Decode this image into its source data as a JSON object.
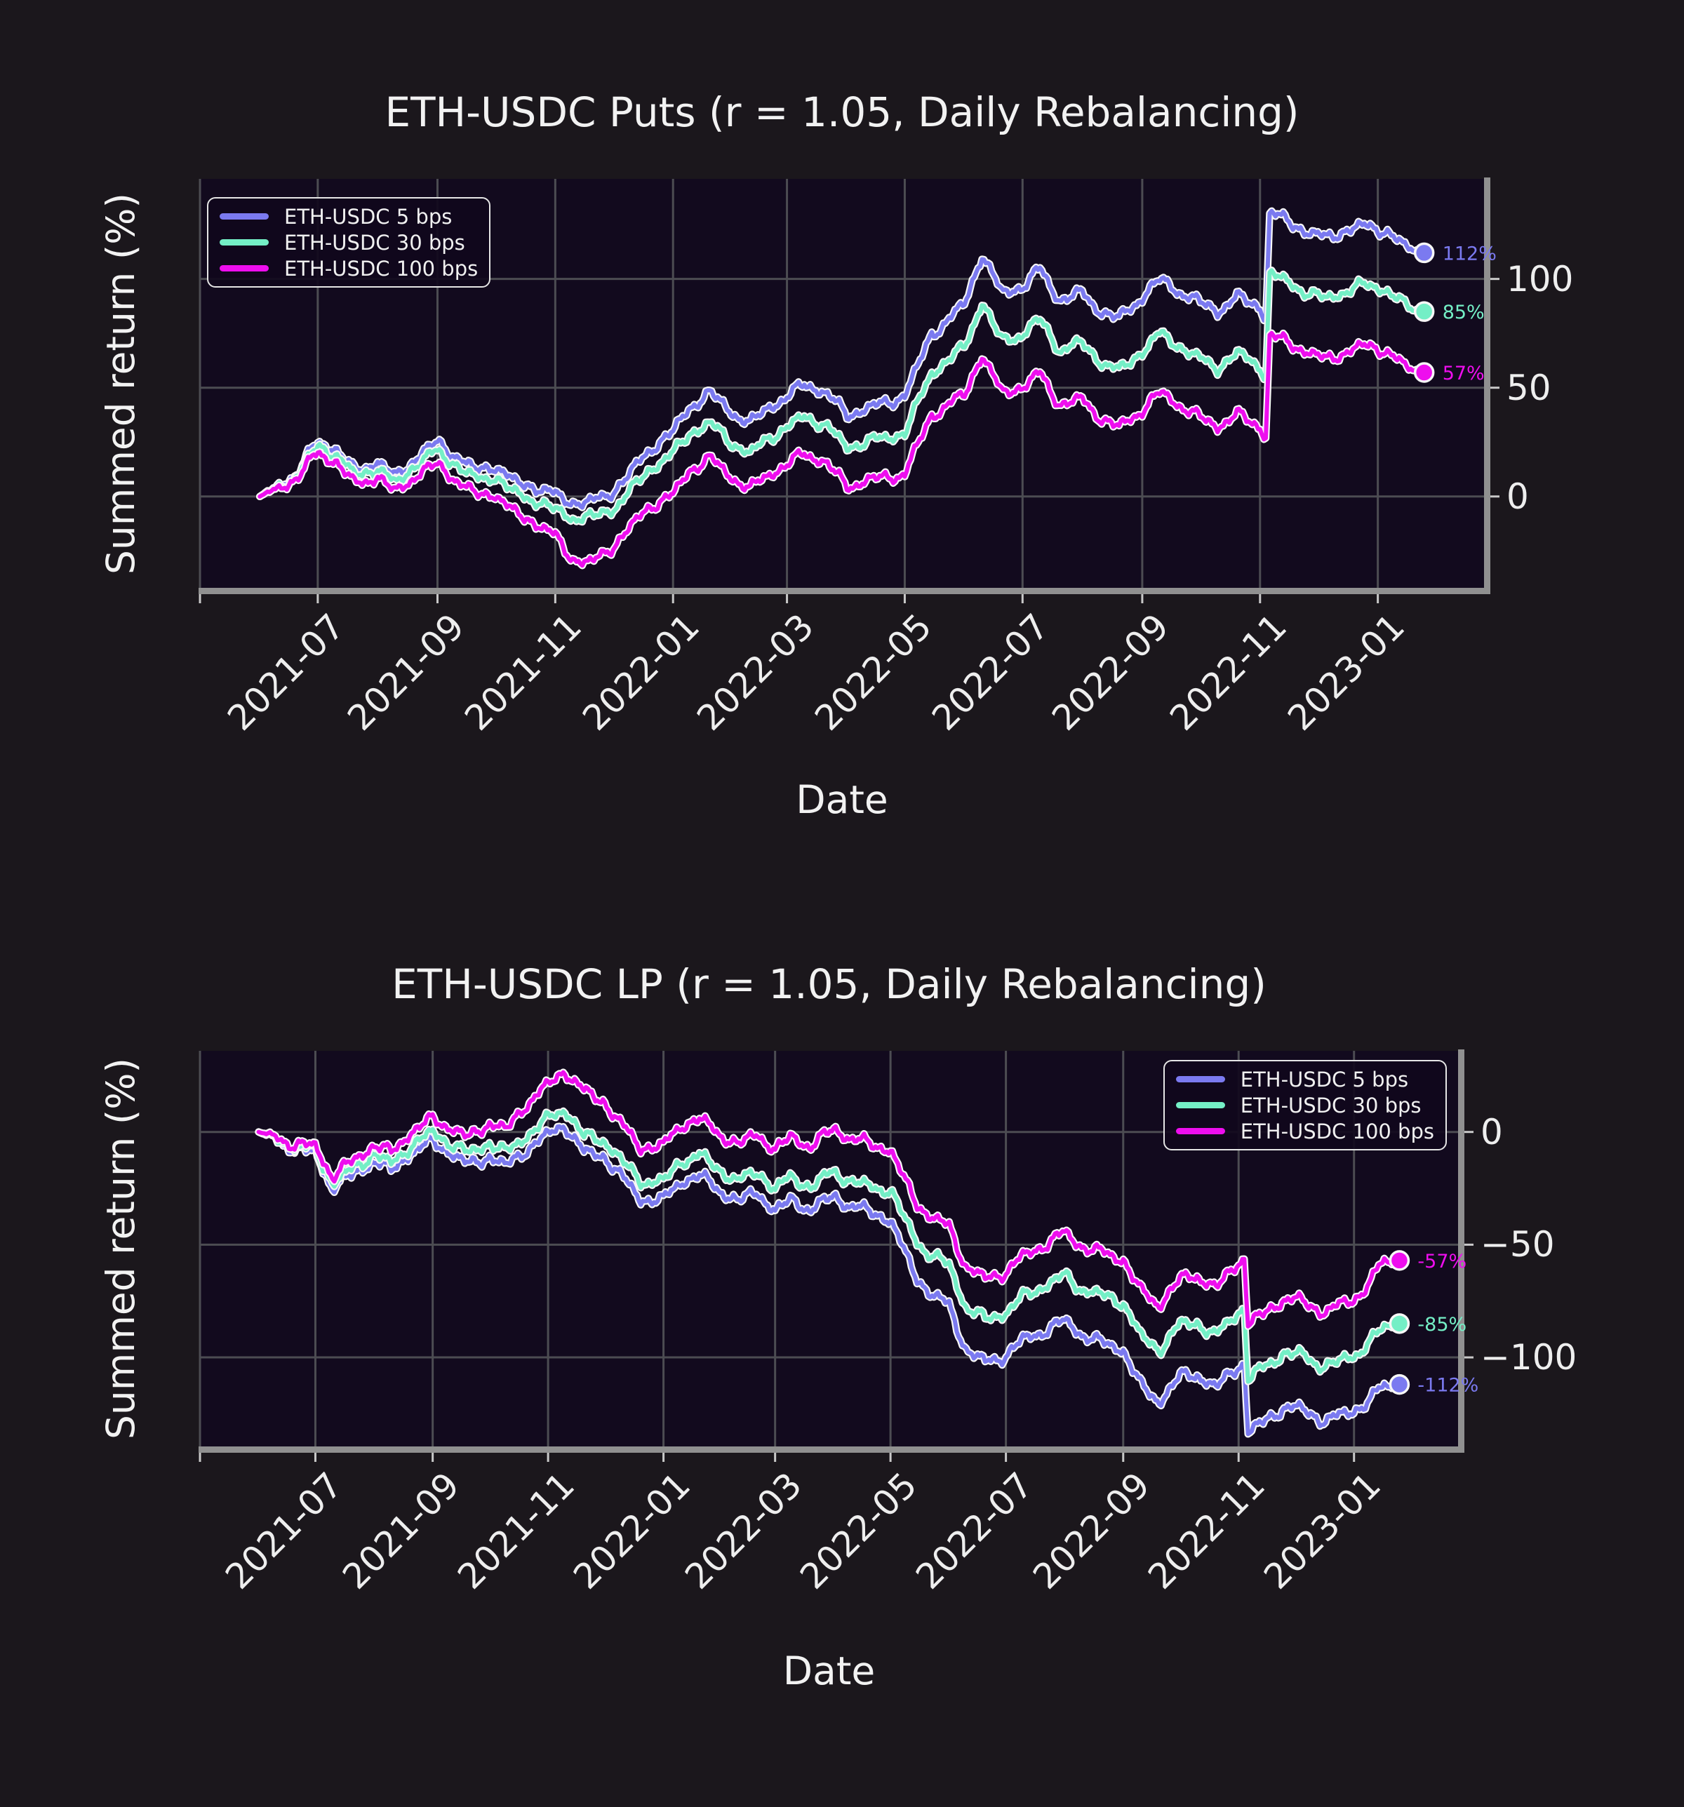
{
  "style": {
    "figure_bg": "#1b171c",
    "axes_bg": "#120a1e",
    "grid_color": "#4c4c52",
    "spine_color": "#909090",
    "tick_color": "#c9c9c9",
    "text_color": "#f2f2f2",
    "line_outline": "#f7f7f7"
  },
  "chart_data": [
    {
      "id": "puts",
      "type": "line",
      "title": "ETH-USDC Puts (r = 1.05, Daily Rebalancing)",
      "xlabel": "Date",
      "ylabel": "Summed return (%)",
      "grid": true,
      "legend_position": "upper left",
      "xlim": [
        "2021-05-01",
        "2023-02-25"
      ],
      "ylim": [
        -42,
        146
      ],
      "yticks": [
        {
          "value": 100,
          "label": "100"
        },
        {
          "value": 50,
          "label": "50"
        },
        {
          "value": 0,
          "label": "0"
        }
      ],
      "xticks": [
        {
          "date": "2021-05-01",
          "label": ""
        },
        {
          "date": "2021-07-01",
          "label": "2021-07"
        },
        {
          "date": "2021-09-01",
          "label": "2021-09"
        },
        {
          "date": "2021-11-01",
          "label": "2021-11"
        },
        {
          "date": "2022-01-01",
          "label": "2022-01"
        },
        {
          "date": "2022-03-01",
          "label": "2022-03"
        },
        {
          "date": "2022-05-01",
          "label": "2022-05"
        },
        {
          "date": "2022-07-01",
          "label": "2022-07"
        },
        {
          "date": "2022-09-01",
          "label": "2022-09"
        },
        {
          "date": "2022-11-01",
          "label": "2022-11"
        },
        {
          "date": "2023-01-01",
          "label": "2023-01"
        }
      ],
      "x": [
        "2021-06-01",
        "2021-06-10",
        "2021-06-20",
        "2021-07-01",
        "2021-07-10",
        "2021-07-20",
        "2021-08-01",
        "2021-08-10",
        "2021-08-20",
        "2021-09-01",
        "2021-09-10",
        "2021-09-20",
        "2021-10-01",
        "2021-10-10",
        "2021-10-20",
        "2021-11-01",
        "2021-11-10",
        "2021-11-20",
        "2021-12-01",
        "2021-12-10",
        "2021-12-20",
        "2022-01-01",
        "2022-01-10",
        "2022-01-20",
        "2022-02-01",
        "2022-02-10",
        "2022-02-20",
        "2022-03-01",
        "2022-03-10",
        "2022-03-20",
        "2022-04-01",
        "2022-04-10",
        "2022-04-20",
        "2022-05-01",
        "2022-05-08",
        "2022-05-15",
        "2022-05-22",
        "2022-06-01",
        "2022-06-10",
        "2022-06-20",
        "2022-07-01",
        "2022-07-10",
        "2022-07-20",
        "2022-08-01",
        "2022-08-10",
        "2022-08-20",
        "2022-09-01",
        "2022-09-10",
        "2022-09-20",
        "2022-10-01",
        "2022-10-10",
        "2022-10-20",
        "2022-11-01",
        "2022-11-04",
        "2022-11-06",
        "2022-11-15",
        "2022-11-25",
        "2022-12-05",
        "2022-12-15",
        "2022-12-25",
        "2023-01-05",
        "2023-01-15",
        "2023-01-25"
      ],
      "series": [
        {
          "name": "ETH-USDC 5 bps",
          "color": "#7b7af0",
          "end_label": "112%",
          "values": [
            0,
            4,
            10,
            25,
            23,
            12,
            16,
            8,
            17,
            25,
            20,
            12,
            14,
            6,
            5,
            1,
            -2,
            -3,
            2,
            10,
            22,
            30,
            42,
            47,
            38,
            33,
            42,
            46,
            52,
            48,
            37,
            40,
            43,
            47,
            60,
            75,
            79,
            88,
            112,
            94,
            97,
            104,
            90,
            93,
            86,
            82,
            92,
            99,
            94,
            89,
            86,
            92,
            87,
            82,
            130,
            126,
            122,
            119,
            123,
            124,
            122,
            114,
            112
          ]
        },
        {
          "name": "ETH-USDC 30 bps",
          "color": "#74efc6",
          "end_label": "85%",
          "values": [
            0,
            3.5,
            9,
            23,
            20.5,
            10,
            13,
            5,
            14,
            21,
            16,
            8,
            9,
            1,
            -1,
            -6,
            -9,
            -10,
            -6,
            2,
            13,
            20,
            30,
            33,
            24,
            19,
            28,
            32,
            37,
            33,
            22,
            25,
            27,
            30,
            43,
            57,
            61,
            68,
            90,
            72,
            75,
            81,
            67,
            70,
            63,
            58,
            67,
            74,
            69,
            63,
            60,
            66,
            60,
            55,
            102,
            98,
            94,
            91,
            95,
            97,
            95,
            87,
            85
          ]
        },
        {
          "name": "ETH-USDC 100 bps",
          "color": "#ee0eee",
          "end_label": "57%",
          "values": [
            0,
            3,
            8,
            20,
            17,
            6,
            9,
            1,
            9,
            15,
            9,
            1,
            1,
            -8,
            -11,
            -18,
            -28,
            -31,
            -23,
            -15,
            -4,
            1,
            13,
            17,
            8,
            3,
            11,
            15,
            20,
            16,
            4,
            7,
            9,
            11,
            24,
            37,
            41,
            46,
            66,
            48,
            51,
            56,
            42,
            44,
            37,
            32,
            40,
            47,
            42,
            36,
            33,
            38,
            32,
            27,
            74,
            70,
            67,
            63,
            67,
            69,
            67,
            59,
            57
          ]
        }
      ]
    },
    {
      "id": "lp",
      "type": "line",
      "title": "ETH-USDC LP (r = 1.05, Daily Rebalancing)",
      "xlabel": "Date",
      "ylabel": "Summed return (%)",
      "grid": true,
      "legend_position": "upper right",
      "xlim": [
        "2021-05-01",
        "2023-02-25"
      ],
      "ylim": [
        -139.5,
        36
      ],
      "yticks": [
        {
          "value": 0,
          "label": "0"
        },
        {
          "value": -50,
          "label": "−50"
        },
        {
          "value": -100,
          "label": "−100"
        }
      ],
      "xticks": [
        {
          "date": "2021-05-01",
          "label": ""
        },
        {
          "date": "2021-07-01",
          "label": "2021-07"
        },
        {
          "date": "2021-09-01",
          "label": "2021-09"
        },
        {
          "date": "2021-11-01",
          "label": "2021-11"
        },
        {
          "date": "2022-01-01",
          "label": "2022-01"
        },
        {
          "date": "2022-03-01",
          "label": "2022-03"
        },
        {
          "date": "2022-05-01",
          "label": "2022-05"
        },
        {
          "date": "2022-07-01",
          "label": "2022-07"
        },
        {
          "date": "2022-09-01",
          "label": "2022-09"
        },
        {
          "date": "2022-11-01",
          "label": "2022-11"
        },
        {
          "date": "2023-01-01",
          "label": "2023-01"
        }
      ],
      "x": [
        "2021-06-01",
        "2021-06-10",
        "2021-06-20",
        "2021-07-01",
        "2021-07-10",
        "2021-07-20",
        "2021-08-01",
        "2021-08-10",
        "2021-08-20",
        "2021-09-01",
        "2021-09-10",
        "2021-09-20",
        "2021-10-01",
        "2021-10-10",
        "2021-10-20",
        "2021-11-01",
        "2021-11-10",
        "2021-11-20",
        "2021-12-01",
        "2021-12-10",
        "2021-12-20",
        "2022-01-01",
        "2022-01-10",
        "2022-01-20",
        "2022-02-01",
        "2022-02-10",
        "2022-02-20",
        "2022-03-01",
        "2022-03-10",
        "2022-03-20",
        "2022-04-01",
        "2022-04-10",
        "2022-04-20",
        "2022-05-01",
        "2022-05-08",
        "2022-05-15",
        "2022-05-22",
        "2022-06-01",
        "2022-06-10",
        "2022-06-20",
        "2022-07-01",
        "2022-07-10",
        "2022-07-20",
        "2022-08-01",
        "2022-08-10",
        "2022-08-20",
        "2022-09-01",
        "2022-09-10",
        "2022-09-20",
        "2022-10-01",
        "2022-10-10",
        "2022-10-20",
        "2022-11-01",
        "2022-11-04",
        "2022-11-06",
        "2022-11-15",
        "2022-11-25",
        "2022-12-05",
        "2022-12-15",
        "2022-12-25",
        "2023-01-05",
        "2023-01-15",
        "2023-01-25"
      ],
      "series": [
        {
          "name": "ETH-USDC 5 bps",
          "color": "#7b7af0",
          "end_label": "-112%",
          "values": [
            0,
            -3,
            -7,
            -10,
            -25,
            -20,
            -12,
            -17,
            -9,
            -5,
            -9,
            -15,
            -10,
            -15,
            -8,
            -2,
            3,
            -9,
            -10,
            -20,
            -30,
            -31,
            -22,
            -19,
            -26,
            -31,
            -27,
            -36,
            -30,
            -34,
            -28,
            -33,
            -36,
            -39,
            -53,
            -64,
            -71,
            -77,
            -97,
            -103,
            -99,
            -92,
            -88,
            -84,
            -90,
            -94,
            -96,
            -112,
            -119,
            -109,
            -108,
            -114,
            -103,
            -102,
            -133,
            -128,
            -122,
            -124,
            -128,
            -126,
            -121,
            -114,
            -112
          ]
        },
        {
          "name": "ETH-USDC 30 bps",
          "color": "#74efc6",
          "end_label": "-85%",
          "values": [
            0,
            -2.5,
            -6,
            -8.5,
            -23,
            -17.5,
            -9,
            -14,
            -6,
            -1,
            -5,
            -10,
            -4,
            -9,
            -2,
            5,
            10,
            -2,
            -3,
            -13,
            -22,
            -23,
            -13,
            -10,
            -17,
            -22,
            -18,
            -26,
            -20,
            -24,
            -17,
            -22,
            -25,
            -26,
            -38,
            -48,
            -54,
            -59,
            -78,
            -84,
            -80,
            -73,
            -68,
            -64,
            -70,
            -73,
            -75,
            -90,
            -96,
            -86,
            -85,
            -91,
            -79,
            -78,
            -109,
            -104,
            -98,
            -100,
            -104,
            -102,
            -96,
            -88,
            -85
          ]
        },
        {
          "name": "ETH-USDC 100 bps",
          "color": "#ee0eee",
          "end_label": "-57%",
          "values": [
            0,
            -2,
            -5,
            -7,
            -20,
            -14,
            -5,
            -9,
            0,
            5,
            2,
            -3,
            5,
            1,
            12,
            20,
            27,
            18,
            14,
            3,
            -7,
            -7,
            3,
            6,
            -1,
            -6,
            -1,
            -9,
            -2,
            -6,
            2,
            -3,
            -6,
            -8,
            -21,
            -31,
            -37,
            -42,
            -60,
            -66,
            -62,
            -55,
            -50,
            -45,
            -51,
            -54,
            -56,
            -70,
            -76,
            -66,
            -64,
            -70,
            -57,
            -55,
            -85,
            -80,
            -74,
            -76,
            -80,
            -77,
            -71,
            -59,
            -57
          ]
        }
      ]
    }
  ]
}
